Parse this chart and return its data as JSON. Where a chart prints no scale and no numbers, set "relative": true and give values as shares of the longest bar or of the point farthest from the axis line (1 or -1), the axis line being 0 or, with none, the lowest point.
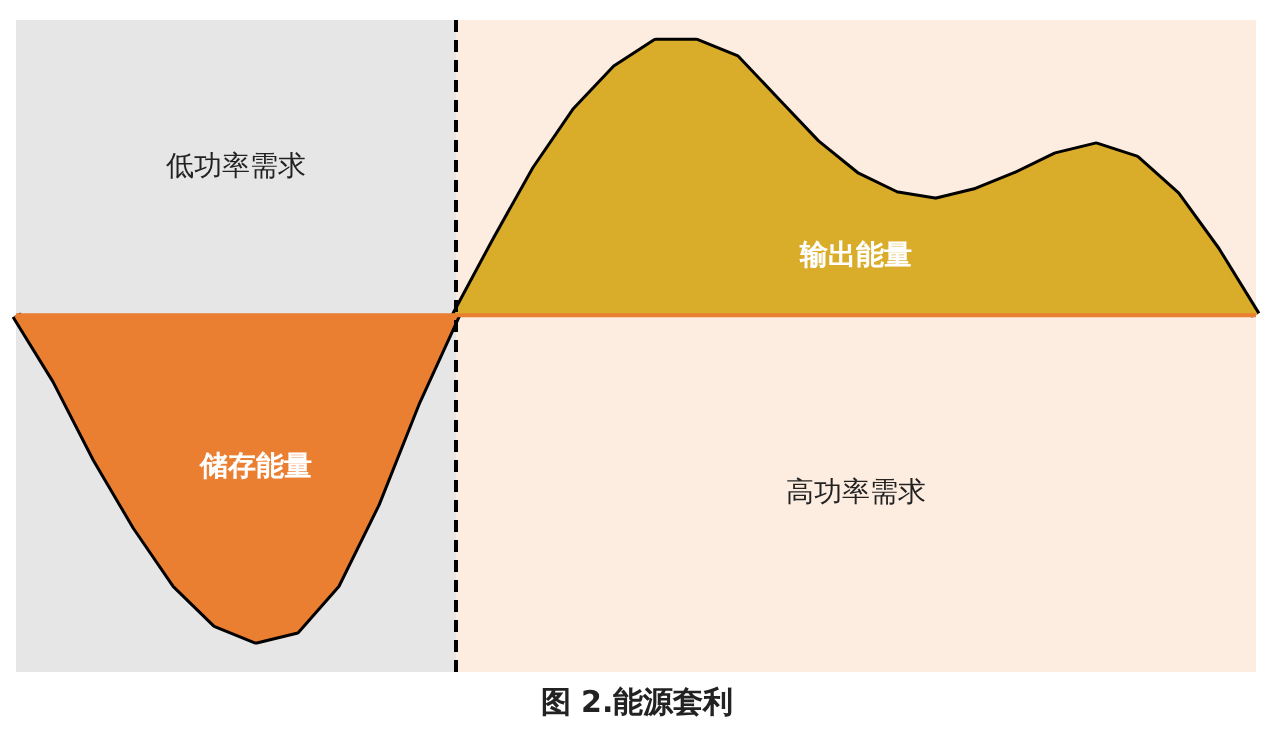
{
  "chart_data": {
    "type": "area",
    "relative": true,
    "title": "图 2.能源套利",
    "categories": [
      null,
      null,
      null,
      null,
      null,
      null,
      null,
      null,
      null,
      null,
      null,
      null,
      null,
      null,
      null,
      null,
      null,
      null,
      null,
      null,
      null,
      null,
      null,
      null,
      null,
      null,
      null,
      null,
      null,
      null,
      null,
      null
    ],
    "series": [
      {
        "color": "#ea7f31",
        "values": [
          0,
          -0.2,
          -0.44,
          -0.65,
          -0.83,
          -0.95,
          -1,
          -0.97,
          -0.83,
          -0.58,
          -0.27,
          0,
          null,
          null,
          null,
          null,
          null,
          null,
          null,
          null,
          null,
          null,
          null,
          null,
          null,
          null,
          null,
          null,
          null,
          null,
          null,
          null
        ]
      },
      {
        "color": "#d9ac29",
        "values": [
          null,
          null,
          null,
          null,
          null,
          null,
          null,
          null,
          null,
          null,
          null,
          0,
          0.23,
          0.45,
          0.63,
          0.76,
          0.84,
          0.84,
          0.79,
          0.66,
          0.53,
          0.43,
          0.37,
          0.35,
          0.38,
          0.43,
          0.49,
          0.52,
          0.48,
          0.37,
          0.2,
          0
        ]
      }
    ],
    "ref_lines": [
      {
        "axis": "y",
        "value": 0,
        "color": "#ea7f31"
      }
    ],
    "annotations": [
      "低功率需求",
      "高功率需求",
      "储存能量",
      "输出能量"
    ]
  }
}
